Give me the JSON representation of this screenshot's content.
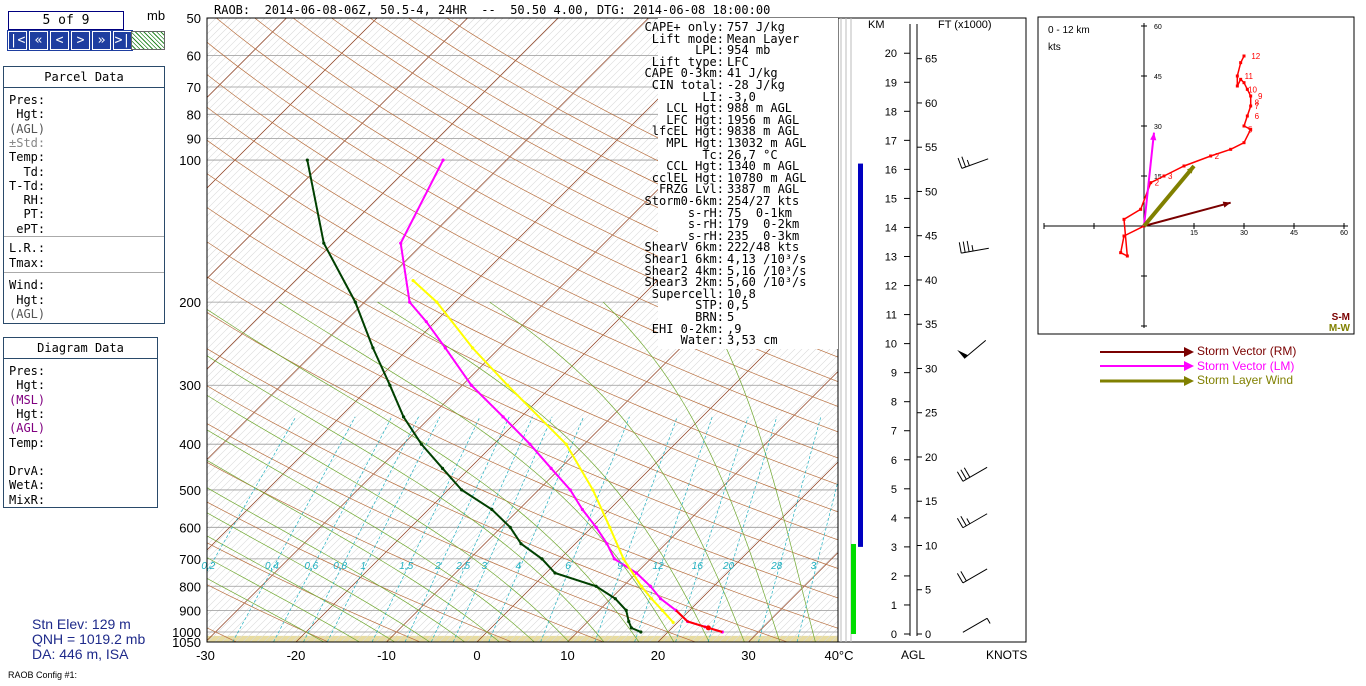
{
  "header": {
    "page_counter": "5 of 9",
    "unit": "mb",
    "nav_buttons": [
      "|<",
      "«",
      "<",
      ">",
      "»",
      ">|"
    ],
    "title": "RAOB:  2014-06-08-06Z, 50.5-4, 24HR  --  50.50 4.00, DTG: 2014-06-08 18:00:00"
  },
  "parcel_panel": {
    "title": "Parcel Data",
    "rows_a": [
      "Pres:",
      " Hgt:",
      "(AGL)",
      "±Std:",
      "Temp:",
      "  Td:",
      "T-Td:",
      "  RH:",
      "  PT:",
      " ePT:"
    ],
    "rows_b": [
      "L.R.:",
      "Tmax:"
    ],
    "rows_c": [
      "Wind:",
      " Hgt:",
      "(AGL)"
    ]
  },
  "diagram_panel": {
    "title": "Diagram Data",
    "rows": [
      "Pres:",
      " Hgt:",
      "(MSL)",
      " Hgt:",
      "(AGL)",
      "Temp:",
      "",
      "DrvA:",
      "WetA:",
      "MixR:"
    ]
  },
  "station": {
    "elev": "Stn Elev: 129 m",
    "qnh": "QNH = 1019.2 mb",
    "da": "DA: 446 m, ISA"
  },
  "config": "RAOB Config #1:",
  "params": [
    [
      "CAPE+ only:",
      "757 J/kg"
    ],
    [
      "Lift mode:",
      "Mean Layer"
    ],
    [
      "LPL:",
      "954 mb"
    ],
    [
      "Lift type:",
      "LFC"
    ],
    [
      "CAPE 0-3km:",
      "41 J/kg"
    ],
    [
      "CIN total:",
      "-28 J/kg"
    ],
    [
      "LI:",
      "-3,0"
    ],
    [
      "LCL Hgt:",
      "988 m AGL"
    ],
    [
      "LFC Hgt:",
      "1956 m AGL"
    ],
    [
      "lfcEL Hgt:",
      "9838 m AGL"
    ],
    [
      "MPL Hgt:",
      "13032 m AGL"
    ],
    [
      "Tc:",
      "26,7 °C"
    ],
    [
      "CCL Hgt:",
      "1340 m AGL"
    ],
    [
      "cclEL Hgt:",
      "10780 m AGL"
    ],
    [
      "FRZG Lvl:",
      "3387 m AGL"
    ],
    [
      "Storm0-6km:",
      "254/27 kts"
    ],
    [
      "s-rH:",
      "75  0-1km"
    ],
    [
      "s-rH:",
      "179  0-2km"
    ],
    [
      "s-rH:",
      "235  0-3km"
    ],
    [
      "ShearV 6km:",
      "222/48 kts"
    ],
    [
      "Shear1 6km:",
      "4,13 /10³/s"
    ],
    [
      "Shear2 4km:",
      "5,16 /10³/s"
    ],
    [
      "Shear3 2km:",
      "5,60 /10³/s"
    ],
    [
      "Supercell:",
      "10,8"
    ],
    [
      "STP:",
      "0,5"
    ],
    [
      "BRN:",
      "5"
    ],
    [
      "EHI 0-2km:",
      ",9"
    ],
    [
      "Water:",
      "3,53 cm"
    ]
  ],
  "colors": {
    "temperature": "#ff00ff",
    "dewpoint": "#004000",
    "parcel": "#ffff00",
    "surface_obs": "#ff0000",
    "cape_bar": "#0000c0",
    "cin_bar": "#00dd00",
    "isotherm": "#8b3a1a",
    "dry_adiabat": "#b87040",
    "moist_adiabat": "#70a830",
    "mixing_ratio": "#20b0c0",
    "storm_rm": "#7a0000",
    "storm_lm": "#ff00ff",
    "layer_wind": "#808000",
    "hodograph": "#ff0000"
  },
  "chart_data": [
    {
      "type": "line",
      "subtype": "skew-T log-P",
      "title": "RAOB:  2014-06-08-06Z, 50.5-4, 24HR  --  50.50 4.00, DTG: 2014-06-08 18:00:00",
      "x_unit_label": "°C",
      "x_ticks": [
        -30,
        -20,
        -10,
        0,
        10,
        20,
        30,
        40
      ],
      "y_ticks": [
        1050,
        1000,
        900,
        800,
        700,
        600,
        500,
        400,
        300,
        200,
        100,
        90,
        80,
        70,
        60,
        50
      ],
      "y_unit": "mb",
      "y_scale": "log",
      "mixing_ratio_labels": [
        "0,2",
        "0,4",
        "0,6",
        "0,8",
        "1",
        "1,5",
        "2",
        "2,5",
        "3",
        "4",
        "6",
        "9",
        "12",
        "16",
        "20",
        "28",
        "3"
      ],
      "series": [
        {
          "name": "Temperature",
          "points": [
            [
              1000,
              26
            ],
            [
              975,
              23.5
            ],
            [
              950,
              21
            ],
            [
              900,
              18.5
            ],
            [
              850,
              15.5
            ],
            [
              800,
              13
            ],
            [
              750,
              10
            ],
            [
              700,
              6
            ],
            [
              650,
              3.5
            ],
            [
              600,
              0.5
            ],
            [
              550,
              -3
            ],
            [
              500,
              -6.5
            ],
            [
              450,
              -11
            ],
            [
              400,
              -16
            ],
            [
              350,
              -22
            ],
            [
              300,
              -29
            ],
            [
              250,
              -36
            ],
            [
              220,
              -41
            ],
            [
              200,
              -45
            ],
            [
              150,
              -52.5
            ],
            [
              100,
              -57
            ]
          ]
        },
        {
          "name": "Dewpoint",
          "points": [
            [
              1000,
              17
            ],
            [
              980,
              15.5
            ],
            [
              950,
              14.5
            ],
            [
              900,
              13
            ],
            [
              850,
              10.5
            ],
            [
              800,
              7
            ],
            [
              750,
              1
            ],
            [
              700,
              -2
            ],
            [
              650,
              -6
            ],
            [
              600,
              -9
            ],
            [
              550,
              -13
            ],
            [
              500,
              -18.5
            ],
            [
              450,
              -23
            ],
            [
              400,
              -28
            ],
            [
              350,
              -33
            ],
            [
              300,
              -38
            ],
            [
              250,
              -44
            ],
            [
              200,
              -51
            ],
            [
              150,
              -61
            ],
            [
              100,
              -72
            ]
          ]
        },
        {
          "name": "Parcel",
          "points": [
            [
              954,
              19.5
            ],
            [
              900,
              17
            ],
            [
              850,
              14.5
            ],
            [
              800,
              12
            ],
            [
              700,
              7
            ],
            [
              600,
              2
            ],
            [
              500,
              -4
            ],
            [
              400,
              -12
            ],
            [
              300,
              -25
            ],
            [
              250,
              -33
            ],
            [
              200,
              -42
            ],
            [
              180,
              -47
            ]
          ]
        }
      ],
      "storm_markers": [
        {
          "p": 980,
          "t": 24,
          "label": ""
        }
      ],
      "height_scale_km": [
        0,
        1,
        2,
        3,
        4,
        5,
        6,
        7,
        8,
        9,
        10,
        11,
        12,
        13,
        14,
        15,
        16,
        17,
        18,
        19,
        20
      ],
      "height_scale_kft": [
        0,
        5,
        10,
        15,
        20,
        25,
        30,
        35,
        40,
        45,
        50,
        55,
        60,
        65
      ],
      "agl_label": "AGL",
      "km_label": "KM",
      "ft_label": "FT (x1000)",
      "knots_label": "KNOTS",
      "cape_bar_top_km": 16.2,
      "cape_bar_bottom_km": 3.0,
      "cin_bar_top_km": 3.1,
      "cin_bar_bottom_km": 0.0,
      "wind_barbs": [
        {
          "km": 0.3,
          "dir": 60,
          "kts": 5
        },
        {
          "km": 2.0,
          "dir": 240,
          "kts": 20
        },
        {
          "km": 3.9,
          "dir": 240,
          "kts": 25
        },
        {
          "km": 5.5,
          "dir": 240,
          "kts": 30
        },
        {
          "km": 9.8,
          "dir": 230,
          "kts": 50
        },
        {
          "km": 13.2,
          "dir": 260,
          "kts": 35
        },
        {
          "km": 16.2,
          "dir": 250,
          "kts": 25
        }
      ]
    },
    {
      "type": "line",
      "subtype": "hodograph",
      "title": "0 - 12 km",
      "unit": "kts",
      "x_ticks": [
        15,
        30,
        45,
        60
      ],
      "y_ticks": [
        15,
        30,
        45,
        60
      ],
      "xlim": [
        -30,
        60
      ],
      "ylim": [
        -30,
        60
      ],
      "hodograph_points": [
        [
          0,
          0
        ],
        [
          -6,
          -3
        ],
        [
          -7,
          -8
        ],
        [
          -5,
          -9
        ],
        [
          -6,
          2
        ],
        [
          -1,
          5
        ],
        [
          2,
          13
        ],
        [
          6,
          15
        ],
        [
          12,
          18
        ],
        [
          20,
          21
        ],
        [
          26,
          23
        ],
        [
          30,
          25
        ],
        [
          32,
          29
        ],
        [
          30,
          30
        ],
        [
          31,
          33
        ],
        [
          32,
          36
        ],
        [
          32,
          39
        ],
        [
          31,
          41
        ],
        [
          30,
          43
        ],
        [
          29,
          44
        ],
        [
          28,
          42
        ],
        [
          28,
          45
        ],
        [
          29,
          49
        ],
        [
          30,
          51
        ]
      ],
      "height_labels": [
        {
          "text": "2",
          "x": 2,
          "y": 13
        },
        {
          "text": "3",
          "x": 6,
          "y": 15
        },
        {
          "text": "2",
          "x": 20,
          "y": 21
        },
        {
          "text": "5",
          "x": 30,
          "y": 29
        },
        {
          "text": "6",
          "x": 32,
          "y": 33
        },
        {
          "text": "7",
          "x": 32,
          "y": 36
        },
        {
          "text": "8",
          "x": 32,
          "y": 37
        },
        {
          "text": "9",
          "x": 33,
          "y": 39
        },
        {
          "text": "10",
          "x": 30,
          "y": 41
        },
        {
          "text": "11",
          "x": 29,
          "y": 45
        },
        {
          "text": "12",
          "x": 31,
          "y": 51
        }
      ],
      "vectors": [
        {
          "name": "Storm Vector (RM)",
          "u": 26,
          "v": 7
        },
        {
          "name": "Storm Vector (LM)",
          "u": 3,
          "v": 28
        },
        {
          "name": "Storm Layer Wind",
          "u": 15,
          "v": 18
        }
      ],
      "corner_labels": [
        "S-M",
        "M-W"
      ]
    }
  ],
  "legend": [
    {
      "label": "Storm Vector (RM)",
      "color_key": "storm_rm"
    },
    {
      "label": "Storm Vector (LM)",
      "color_key": "storm_lm"
    },
    {
      "label": "Storm Layer Wind",
      "color_key": "layer_wind"
    }
  ]
}
